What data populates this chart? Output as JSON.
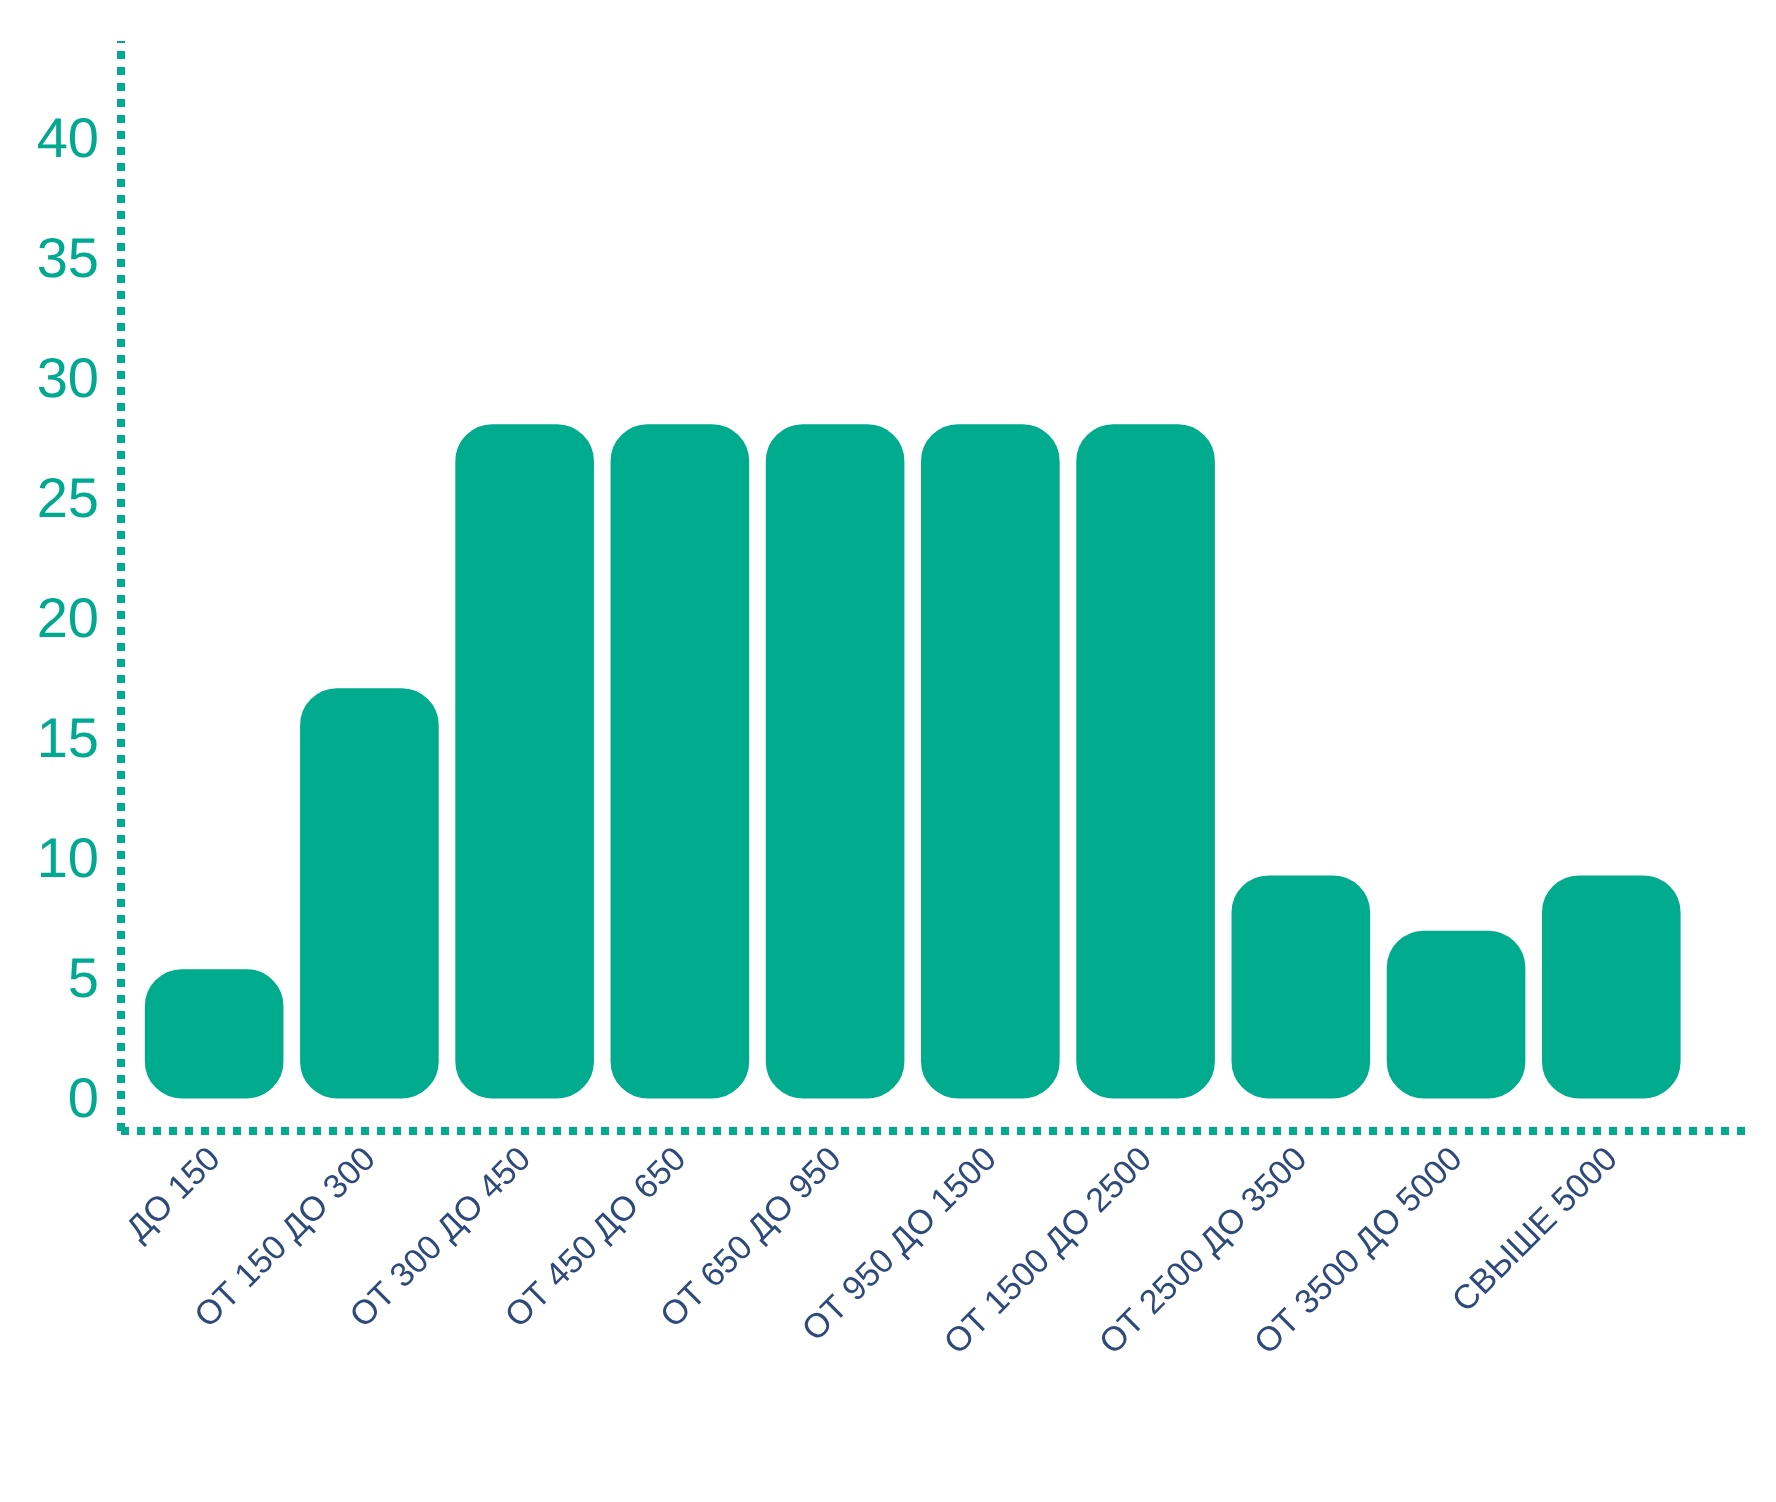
{
  "chart_data": {
    "type": "bar",
    "categories": [
      "ДО 150",
      "ОТ 150 ДО 300",
      "ОТ 300 ДО 450",
      "ОТ 450 ДО 650",
      "ОТ 650 ДО 950",
      "ОТ 950 ДО 1500",
      "ОТ 1500 ДО 2500",
      "ОТ 2500 ДО 3500",
      "ОТ 3500 ДО 5000",
      "СВЫШЕ 5000"
    ],
    "values": [
      5.3,
      17,
      28,
      28,
      28,
      28,
      28,
      9.2,
      6.9,
      9.2
    ],
    "color": "#00ab8e",
    "ylim": [
      -1.4,
      44
    ],
    "yticks": [
      0,
      5,
      10,
      15,
      20,
      25,
      30,
      35,
      40
    ],
    "grid": false
  }
}
